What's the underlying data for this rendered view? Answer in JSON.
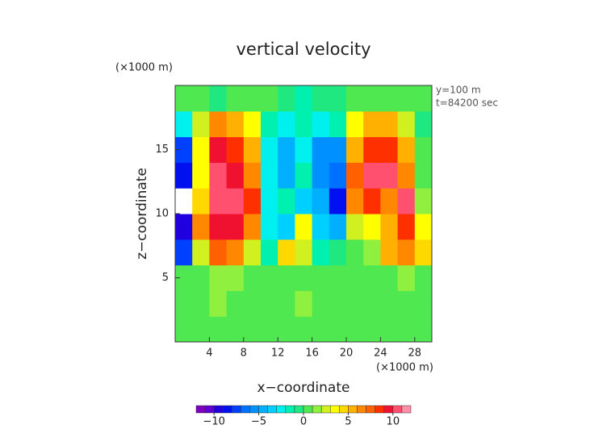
{
  "chart_data": {
    "type": "contour",
    "title": "vertical velocity",
    "subtitle_lines": [
      "y=100 m",
      "t=84200 sec"
    ],
    "x_label": "x−coordinate",
    "y_label": "z−coordinate",
    "x_unit": "(×1000 m)",
    "y_unit": "(×1000 m)",
    "xlim": [
      0,
      30
    ],
    "ylim": [
      0,
      20
    ],
    "xticks": [
      4,
      8,
      12,
      16,
      20,
      24,
      28
    ],
    "yticks": [
      5,
      10,
      15
    ],
    "x": [
      1,
      3,
      5,
      7,
      9,
      11,
      13,
      15,
      17,
      19,
      21,
      23,
      25,
      27,
      29
    ],
    "y": [
      1,
      3,
      5,
      7,
      9,
      11,
      13,
      15,
      17,
      19
    ],
    "z": [
      [
        0,
        0,
        0,
        0,
        0,
        0,
        0,
        0,
        0,
        0,
        0,
        0,
        0,
        0,
        0
      ],
      [
        0,
        0,
        1,
        0,
        0,
        0,
        0,
        1,
        0,
        0,
        0,
        0,
        0,
        0,
        0
      ],
      [
        0,
        0,
        1,
        1,
        0,
        0,
        0,
        0,
        0,
        0,
        0,
        0,
        0,
        1,
        0
      ],
      [
        -8,
        2,
        7,
        6,
        2,
        -2,
        4,
        2,
        -2,
        -1,
        0,
        1,
        5,
        6,
        4
      ],
      [
        -10,
        6,
        9,
        9,
        6,
        -3,
        -4,
        3,
        -4,
        -5,
        2,
        3,
        5,
        8,
        3
      ],
      [
        -13,
        4,
        10,
        10,
        8,
        -3,
        -2,
        -4,
        -5,
        -9,
        6,
        8,
        6,
        10,
        1
      ],
      [
        -9,
        3,
        10,
        9,
        6,
        -3,
        -5,
        -2,
        -6,
        -7,
        7,
        10,
        10,
        6,
        0
      ],
      [
        -8,
        3,
        9,
        8,
        5,
        -3,
        -5,
        -3,
        -6,
        -6,
        5,
        8,
        8,
        5,
        0
      ],
      [
        -3,
        2,
        6,
        5,
        3,
        -2,
        -3,
        -2,
        -3,
        -2,
        3,
        5,
        5,
        2,
        -1
      ],
      [
        0,
        0,
        -1,
        0,
        0,
        0,
        -1,
        -2,
        -1,
        -1,
        0,
        0,
        0,
        0,
        0
      ]
    ],
    "colorbar": {
      "lim": [
        -12,
        12
      ],
      "ticks": [
        {
          "value": -10,
          "label": "−10"
        },
        {
          "value": -5,
          "label": "−5"
        },
        0,
        5,
        10
      ],
      "colors": [
        "#8000c0",
        "#6000d0",
        "#2000e0",
        "#0010f0",
        "#0040ff",
        "#0070ff",
        "#0090ff",
        "#00b0ff",
        "#00d0ff",
        "#00f0f0",
        "#00f0b0",
        "#20e880",
        "#50e850",
        "#90f040",
        "#d0f020",
        "#ffff00",
        "#ffd800",
        "#ffb000",
        "#ff8800",
        "#ff6000",
        "#ff3000",
        "#f01030",
        "#ff5070",
        "#ff90a8"
      ],
      "out_of_range_color": "#ffffff"
    }
  }
}
